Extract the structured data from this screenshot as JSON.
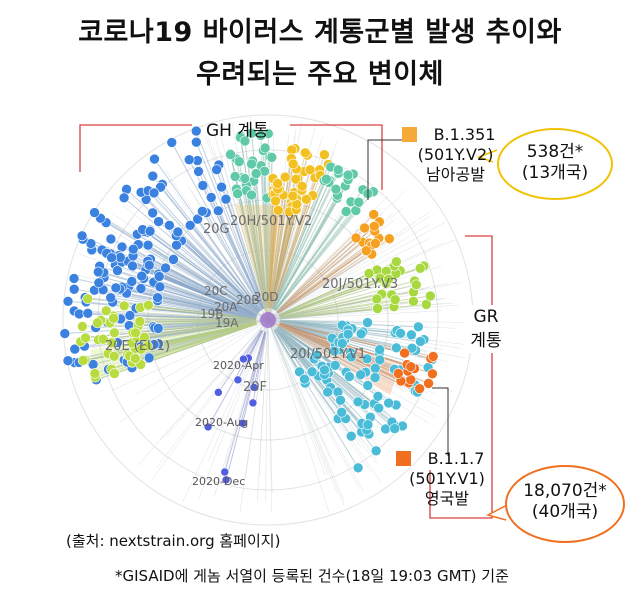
{
  "title": {
    "line1": "코로나19 바이러스 계통군별 발생 추이와",
    "line2": "우려되는 주요 변이체"
  },
  "gh_group": {
    "label": "GH 계통",
    "color": "#d94040"
  },
  "gr_group": {
    "label_line1": "GR",
    "label_line2": "계통",
    "color": "#d94040"
  },
  "variant_south_africa": {
    "code": "B.1.351",
    "lineage": "(501Y.V2)",
    "origin": "남아공발",
    "marker_color": "#f5a93a",
    "count": "538건*",
    "countries": "(13개국)",
    "bubble_color": "#f2c200"
  },
  "variant_uk": {
    "code": "B.1.1.7",
    "lineage": "(501Y.V1)",
    "origin": "영국발",
    "marker_color": "#f07020",
    "count": "18,070건*",
    "countries": "(40개국)",
    "bubble_color": "#f07020"
  },
  "clades": {
    "c20H": "20H/501Y.V2",
    "c20G": "20G",
    "c20J": "20J/501Y.V3",
    "c20I": "20I/501Y.V1",
    "c20E": "20E (EU1)",
    "c20F": "20F",
    "c20C": "20C",
    "c20D": "20D",
    "c20B": "20B",
    "c20A": "20A",
    "c19B": "19B",
    "c19A": "19A"
  },
  "time_labels": {
    "apr": "2020-Apr",
    "aug": "2020-Aug",
    "dec": "2020-Dec"
  },
  "source": "(출처: nextstrain.org 홈페이지)",
  "footnote": "*GISAID에 게놈 서열이 등록된 건수(18일 19:03 GMT) 기준"
}
